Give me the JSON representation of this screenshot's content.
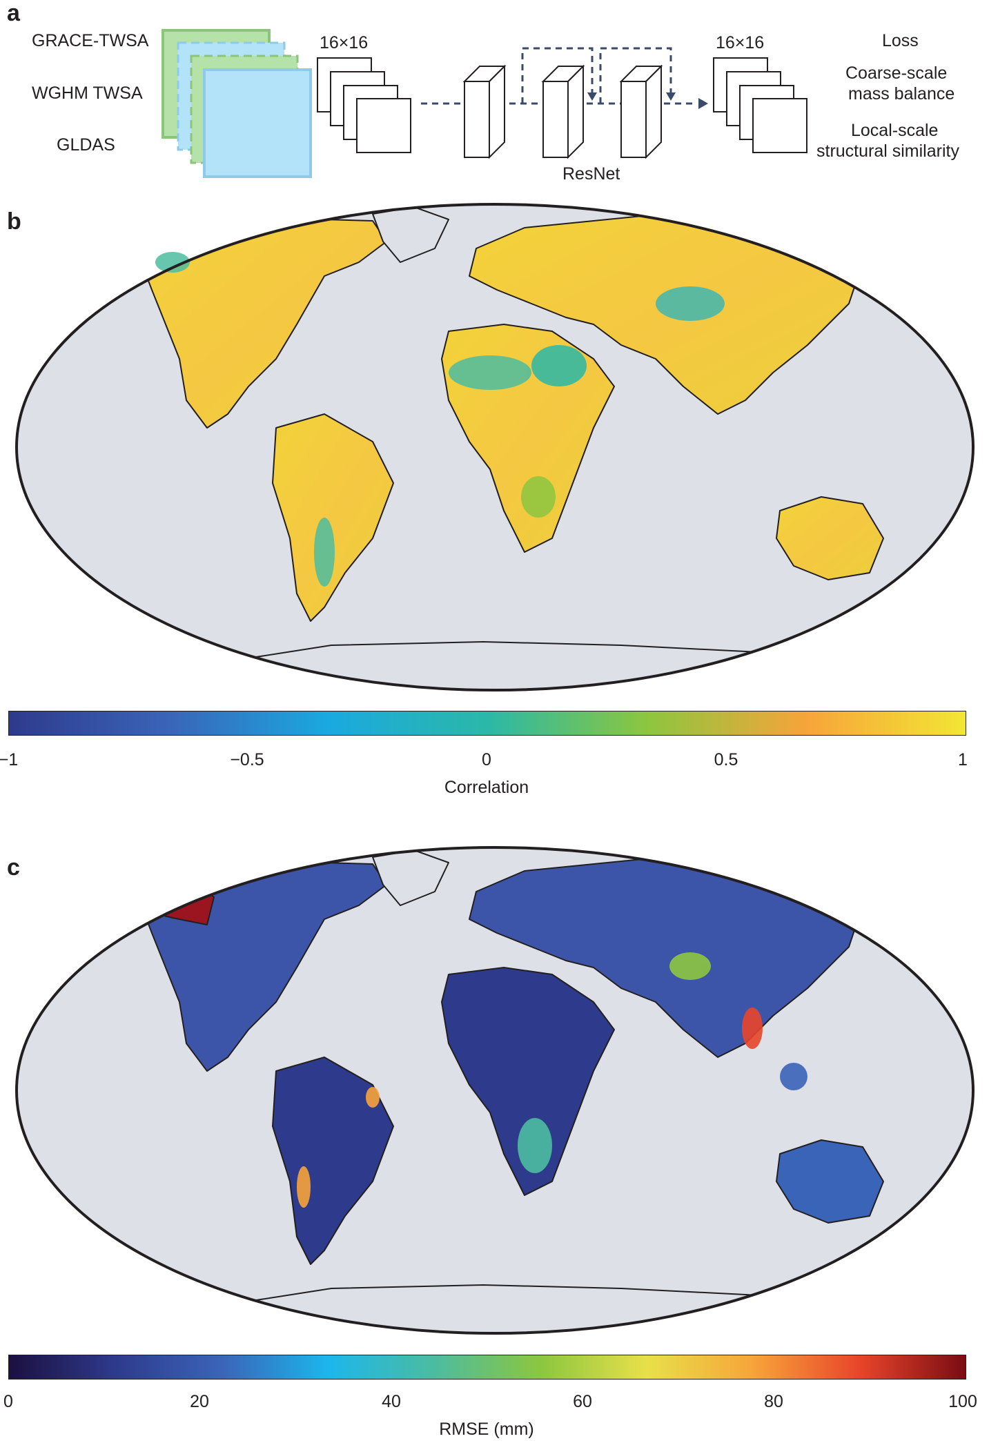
{
  "panels": {
    "a": {
      "letter": "a",
      "inputs": [
        "GRACE-TWSA",
        "WGHM TWSA",
        "GLDAS"
      ],
      "grid_in": "16×16",
      "network": "ResNet",
      "grid_out": "16×16",
      "loss_title": "Loss",
      "loss_terms": [
        "Coarse-scale\nmass balance",
        "Local-scale\nstructural similarity"
      ],
      "loss_line1": "Coarse-scale",
      "loss_line2": "mass balance",
      "loss_line3": "Local-scale",
      "loss_line4": "structural similarity"
    },
    "b": {
      "letter": "b",
      "colorbar": {
        "title": "Correlation",
        "ticks": [
          "−1",
          "−0.5",
          "0",
          "0.5",
          "1"
        ],
        "range": [
          -1,
          1
        ],
        "colors": [
          "#2e3a8c",
          "#3a64b8",
          "#1aa9e0",
          "#2bb8a8",
          "#8cc63f",
          "#f7a43a",
          "#f2e634"
        ]
      },
      "dominant_color": "#f2d23a"
    },
    "c": {
      "letter": "c",
      "colorbar": {
        "title": "RMSE (mm)",
        "ticks": [
          "0",
          "20",
          "40",
          "60",
          "80",
          "100"
        ],
        "range": [
          0,
          100
        ],
        "colors": [
          "#1b1040",
          "#2e3a8c",
          "#3a64b8",
          "#1cb6ec",
          "#4cbca0",
          "#8cc63f",
          "#e8e04a",
          "#f7a43a",
          "#e8452a",
          "#7a0c14"
        ]
      },
      "dominant_color": "#3d55a8"
    }
  },
  "colors": {
    "ocean": "#dde1e7",
    "outline": "#231f20",
    "green_box": "#b5e2a8",
    "blue_box": "#b3e3f8",
    "arrow": "#3a4a6a"
  }
}
